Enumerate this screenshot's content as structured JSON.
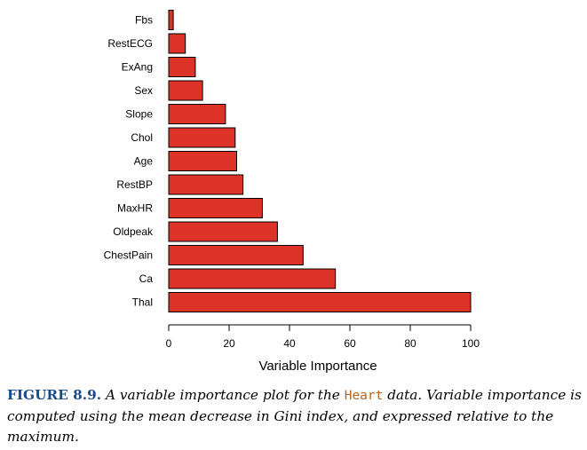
{
  "chart_data": {
    "type": "bar",
    "orientation": "horizontal",
    "categories": [
      "Fbs",
      "RestECG",
      "ExAng",
      "Sex",
      "Slope",
      "Chol",
      "Age",
      "RestBP",
      "MaxHR",
      "Oldpeak",
      "ChestPain",
      "Ca",
      "Thal"
    ],
    "values": [
      1.5,
      5.5,
      8.8,
      11.2,
      18.8,
      22,
      22.5,
      24.6,
      31,
      36,
      44.5,
      55.2,
      100
    ],
    "xlabel": "Variable Importance",
    "ylabel": "",
    "xlim": [
      0,
      100
    ],
    "xticks": [
      0,
      20,
      40,
      60,
      80,
      100
    ],
    "bar_color": "#dc3228",
    "bar_edge_color": "#000000"
  },
  "caption": {
    "label": "FIGURE 8.9.",
    "text_before": "A variable importance plot for the ",
    "code": "Heart",
    "text_after": " data. Variable importance is computed using the mean decrease in Gini index, and expressed relative to the maximum."
  },
  "colors": {
    "figure_label": "#1a4a8a",
    "code_text": "#b5651d"
  }
}
